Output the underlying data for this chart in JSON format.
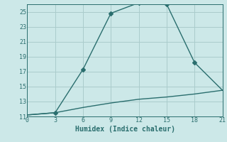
{
  "xlabel": "Humidex (Indice chaleur)",
  "bg_color": "#cce8e8",
  "grid_color": "#aacccc",
  "line_color": "#2a6e6e",
  "xlim": [
    0,
    21
  ],
  "ylim": [
    11,
    26
  ],
  "xticks": [
    0,
    3,
    6,
    9,
    12,
    15,
    18,
    21
  ],
  "yticks": [
    11,
    13,
    15,
    17,
    19,
    21,
    23,
    25
  ],
  "line1_x": [
    0,
    3,
    6,
    9,
    12,
    15,
    18,
    21
  ],
  "line1_y": [
    11.2,
    11.5,
    17.3,
    24.8,
    26.2,
    26.0,
    18.2,
    14.5
  ],
  "line1_markers_x": [
    3,
    6,
    9,
    12,
    15,
    18
  ],
  "line1_markers_y": [
    11.5,
    17.3,
    24.8,
    26.2,
    26.0,
    18.2
  ],
  "line2_x": [
    0,
    3,
    6,
    9,
    12,
    15,
    18,
    21
  ],
  "line2_y": [
    11.2,
    11.5,
    12.2,
    12.8,
    13.3,
    13.6,
    14.0,
    14.5
  ],
  "marker": "D",
  "marker_size": 3,
  "line_width": 1.0
}
